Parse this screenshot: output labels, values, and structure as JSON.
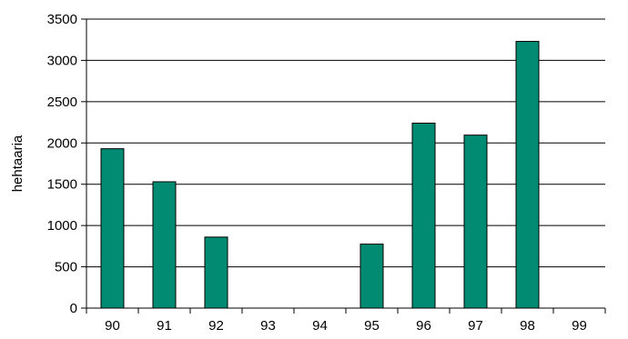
{
  "chart_data": {
    "type": "bar",
    "title": "",
    "xlabel": "",
    "ylabel": "hehtaaria",
    "categories": [
      "90",
      "91",
      "92",
      "93",
      "94",
      "95",
      "96",
      "97",
      "98",
      "99"
    ],
    "values": [
      1930,
      1530,
      860,
      0,
      0,
      775,
      2240,
      2095,
      3230,
      0
    ],
    "ylim": [
      0,
      3500
    ],
    "yticks": [
      0,
      500,
      1000,
      1500,
      2000,
      2500,
      3000,
      3500
    ],
    "ytick_labels": [
      "0",
      "500",
      "1000",
      "1500",
      "2000",
      "2500",
      "3000",
      "3500"
    ],
    "grid": true,
    "legend": "none",
    "bar_color": "#008B72"
  }
}
